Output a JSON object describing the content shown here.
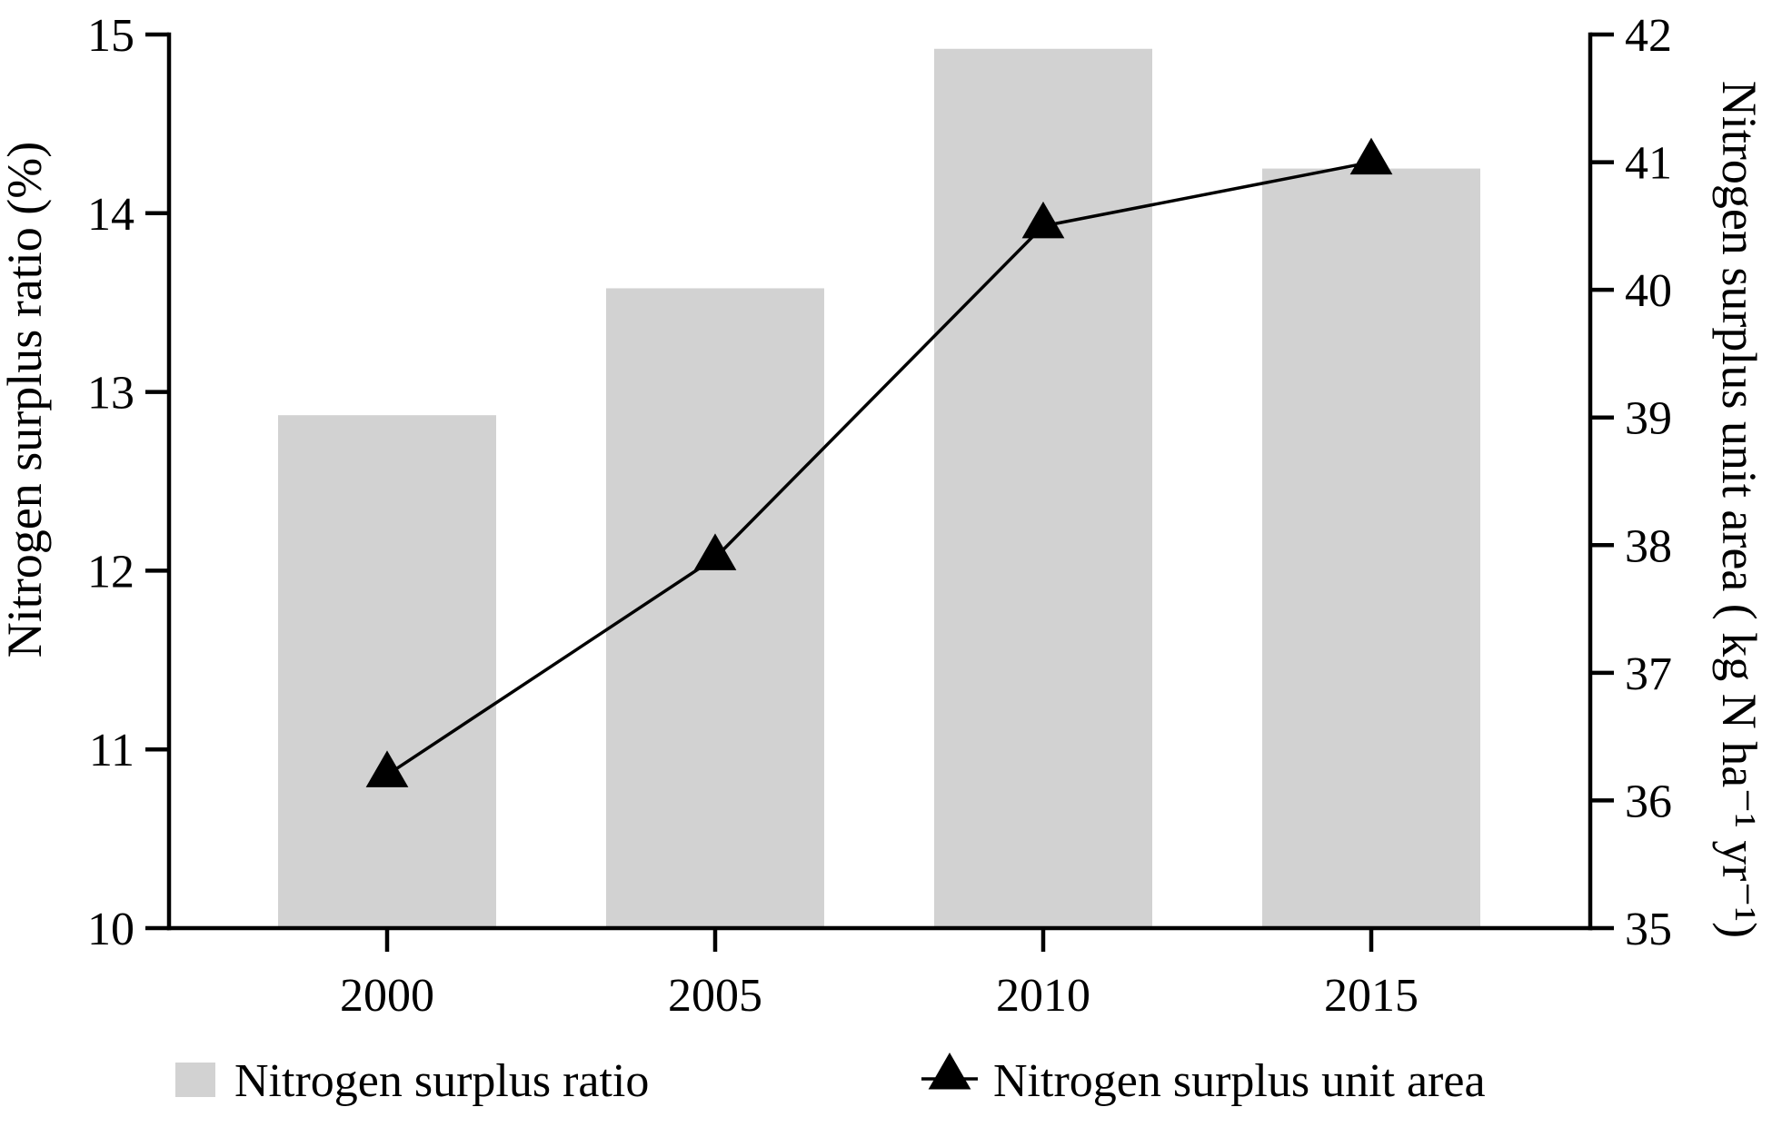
{
  "figure": {
    "background": "#ffffff",
    "text_color": "#000000"
  },
  "chart_data": {
    "type": "bar+line",
    "categories": [
      "2000",
      "2005",
      "2010",
      "2015"
    ],
    "series": [
      {
        "name": "Nitrogen surplus ratio",
        "kind": "bar",
        "axis": "left",
        "color": "#d2d2d2",
        "values": [
          12.87,
          13.58,
          14.92,
          14.25
        ]
      },
      {
        "name": "Nitrogen surplus unit area",
        "kind": "line",
        "axis": "right",
        "color": "#000000",
        "marker": "triangle-up",
        "values": [
          36.2,
          37.9,
          40.5,
          41.0
        ]
      }
    ],
    "left_axis": {
      "label": "Nitrogen surplus ratio (%)",
      "min": 10,
      "max": 15,
      "ticks": [
        15,
        14,
        13,
        12,
        11,
        10
      ]
    },
    "right_axis": {
      "label": "Nitrogen surplus unit area ( kg N ha⁻¹ yr⁻¹)",
      "min": 35,
      "max": 42,
      "ticks": [
        42,
        41,
        40,
        39,
        38,
        37,
        36,
        35
      ]
    },
    "x_axis": {
      "label": "",
      "tick_labels": [
        "2000",
        "2005",
        "2010",
        "2015"
      ]
    },
    "grid": false,
    "legend": {
      "position": "bottom",
      "items": [
        {
          "label": "Nitrogen surplus ratio",
          "swatch": "gray-square"
        },
        {
          "label": "Nitrogen surplus unit area",
          "swatch": "line-with-triangle"
        }
      ]
    }
  }
}
